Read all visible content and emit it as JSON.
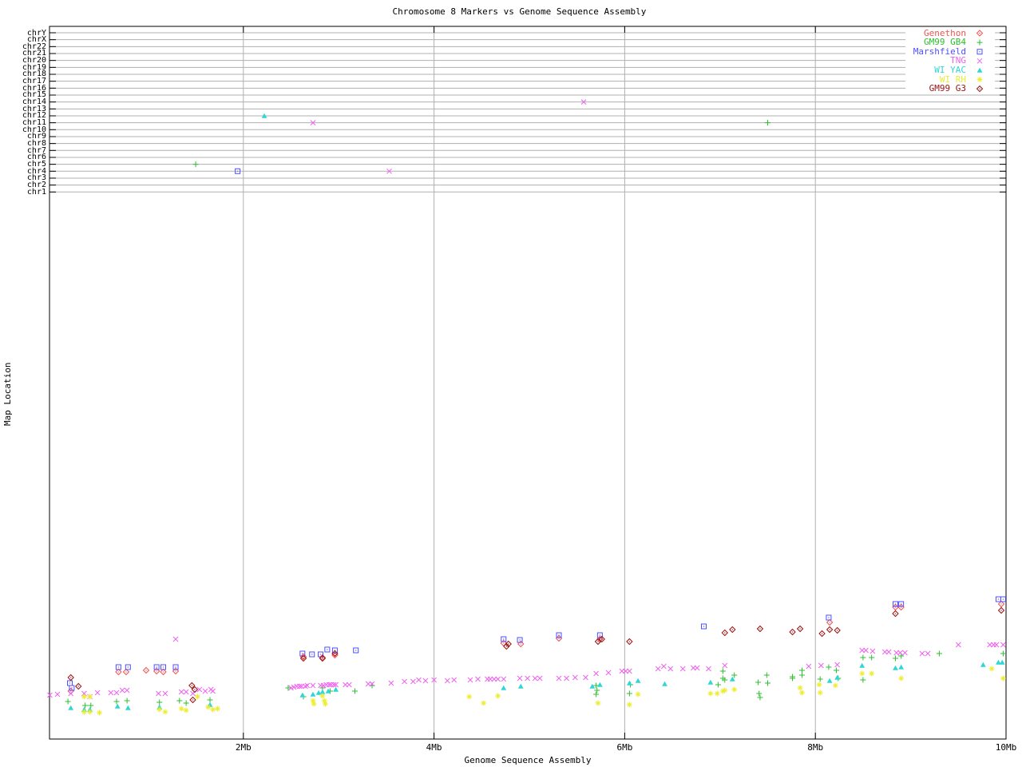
{
  "chart_data": {
    "type": "scatter",
    "title": "Chromosome 8 Markers vs Genome Sequence Assembly",
    "xlabel": "Genome Sequence Assembly",
    "ylabel": "Map Location",
    "x_ticks": [
      {
        "mb": 2,
        "label": "2Mb"
      },
      {
        "mb": 4,
        "label": "4Mb"
      },
      {
        "mb": 6,
        "label": "6Mb"
      },
      {
        "mb": 8,
        "label": "8Mb"
      },
      {
        "mb": 10,
        "label": "10Mb"
      }
    ],
    "x_axis_units": "Mb",
    "y_axis_note": "upper rows are per-chromosome gridlines; lower cloud is map location (axis unlabeled, stored as plot px from top)",
    "chromosome_rows_top_to_bottom": [
      "chrY",
      "chrX",
      "chr22",
      "chr21",
      "chr20",
      "chr19",
      "chr18",
      "chr17",
      "chr16",
      "chr15",
      "chr14",
      "chr13",
      "chr12",
      "chr11",
      "chr10",
      "chr9",
      "chr8",
      "chr7",
      "chr6",
      "chr5",
      "chr4",
      "chr3",
      "chr2",
      "chr1"
    ],
    "legend_position": "top-right-inside",
    "grid": true,
    "series": [
      {
        "name": "Genethon",
        "marker": "diamond-dot",
        "color": "#f25252",
        "points": [
          [
            0.19,
            865
          ],
          [
            0.69,
            841
          ],
          [
            0.77,
            841
          ],
          [
            0.98,
            839
          ],
          [
            1.09,
            840
          ],
          [
            1.16,
            841
          ],
          [
            1.29,
            840
          ],
          [
            2.63,
            822
          ],
          [
            2.83,
            823
          ],
          [
            2.96,
            820
          ],
          [
            4.73,
            805
          ],
          [
            4.91,
            806
          ],
          [
            5.31,
            799
          ],
          [
            5.74,
            800
          ],
          [
            8.15,
            779
          ],
          [
            8.84,
            760
          ],
          [
            8.9,
            760
          ],
          [
            9.95,
            756
          ]
        ],
        "chr_points": []
      },
      {
        "name": "GM99 GB4",
        "marker": "plus",
        "color": "#2fbf2f",
        "points": [
          [
            0.16,
            878
          ],
          [
            0.34,
            883
          ],
          [
            0.4,
            883
          ],
          [
            0.67,
            878
          ],
          [
            0.78,
            877
          ],
          [
            1.12,
            879
          ],
          [
            1.33,
            877
          ],
          [
            1.4,
            880
          ],
          [
            1.65,
            876
          ],
          [
            2.47,
            861
          ],
          [
            2.63,
            872
          ],
          [
            2.83,
            861
          ],
          [
            2.91,
            865
          ],
          [
            3.17,
            865
          ],
          [
            3.35,
            858
          ],
          [
            5.7,
            858
          ],
          [
            5.71,
            864
          ],
          [
            5.7,
            869
          ],
          [
            6.06,
            857
          ],
          [
            6.05,
            868
          ],
          [
            6.98,
            857
          ],
          [
            7.03,
            840
          ],
          [
            7.03,
            849
          ],
          [
            7.05,
            851
          ],
          [
            7.15,
            845
          ],
          [
            7.4,
            854
          ],
          [
            7.41,
            868
          ],
          [
            7.42,
            873
          ],
          [
            7.49,
            845
          ],
          [
            7.5,
            855
          ],
          [
            7.76,
            847
          ],
          [
            7.76,
            849
          ],
          [
            7.86,
            839
          ],
          [
            7.86,
            845
          ],
          [
            8.05,
            850
          ],
          [
            8.14,
            835
          ],
          [
            8.22,
            839
          ],
          [
            8.24,
            849
          ],
          [
            8.5,
            823
          ],
          [
            8.5,
            851
          ],
          [
            8.59,
            823
          ],
          [
            8.84,
            824
          ],
          [
            8.9,
            821
          ],
          [
            9.3,
            818
          ],
          [
            9.97,
            818
          ]
        ],
        "chr_points": [
          {
            "mb": 1.5,
            "chr": "chr5"
          },
          {
            "mb": 7.5,
            "chr": "chr11"
          }
        ]
      },
      {
        "name": "Marshfield",
        "marker": "square-dot",
        "color": "#4f4fff",
        "points": [
          [
            0.18,
            855
          ],
          [
            0.2,
            861
          ],
          [
            0.69,
            835
          ],
          [
            0.79,
            835
          ],
          [
            1.09,
            835
          ],
          [
            1.16,
            835
          ],
          [
            1.29,
            835
          ],
          [
            2.62,
            818
          ],
          [
            2.72,
            819
          ],
          [
            2.81,
            819
          ],
          [
            2.88,
            813
          ],
          [
            2.96,
            814
          ],
          [
            3.18,
            814
          ],
          [
            4.73,
            800
          ],
          [
            4.9,
            801
          ],
          [
            5.31,
            795
          ],
          [
            5.74,
            795
          ],
          [
            6.83,
            784
          ],
          [
            8.14,
            773
          ],
          [
            8.84,
            756
          ],
          [
            8.9,
            756
          ],
          [
            9.92,
            750
          ],
          [
            9.97,
            750
          ]
        ],
        "chr_points": [
          {
            "mb": 1.94,
            "chr": "chr4"
          }
        ]
      },
      {
        "name": "TNG",
        "marker": "cross",
        "color": "#f060f0",
        "points": [
          [
            -0.03,
            870
          ],
          [
            0.05,
            869
          ],
          [
            0.19,
            868
          ],
          [
            0.33,
            868
          ],
          [
            0.39,
            872
          ],
          [
            0.47,
            867
          ],
          [
            0.61,
            867
          ],
          [
            0.67,
            867
          ],
          [
            0.73,
            864
          ],
          [
            0.78,
            864
          ],
          [
            1.11,
            868
          ],
          [
            1.18,
            868
          ],
          [
            1.29,
            800
          ],
          [
            1.35,
            866
          ],
          [
            1.4,
            866
          ],
          [
            1.47,
            868
          ],
          [
            1.54,
            863
          ],
          [
            1.6,
            865
          ],
          [
            1.66,
            863
          ],
          [
            1.68,
            865
          ],
          [
            2.5,
            861
          ],
          [
            2.53,
            860
          ],
          [
            2.56,
            859
          ],
          [
            2.59,
            859
          ],
          [
            2.61,
            859
          ],
          [
            2.65,
            859
          ],
          [
            2.67,
            858
          ],
          [
            2.73,
            858
          ],
          [
            2.81,
            858
          ],
          [
            2.84,
            858
          ],
          [
            2.87,
            857
          ],
          [
            2.9,
            857
          ],
          [
            2.92,
            857
          ],
          [
            2.95,
            857
          ],
          [
            2.97,
            857
          ],
          [
            3.07,
            857
          ],
          [
            3.11,
            857
          ],
          [
            3.31,
            856
          ],
          [
            3.35,
            856
          ],
          [
            3.55,
            855
          ],
          [
            3.69,
            853
          ],
          [
            3.78,
            853
          ],
          [
            3.84,
            851
          ],
          [
            3.91,
            852
          ],
          [
            4.0,
            851
          ],
          [
            4.14,
            852
          ],
          [
            4.21,
            851
          ],
          [
            4.38,
            851
          ],
          [
            4.46,
            850
          ],
          [
            4.56,
            850
          ],
          [
            4.59,
            850
          ],
          [
            4.63,
            850
          ],
          [
            4.67,
            850
          ],
          [
            4.73,
            850
          ],
          [
            4.9,
            849
          ],
          [
            4.98,
            849
          ],
          [
            5.06,
            849
          ],
          [
            5.11,
            849
          ],
          [
            5.31,
            849
          ],
          [
            5.39,
            849
          ],
          [
            5.48,
            848
          ],
          [
            5.59,
            848
          ],
          [
            5.7,
            843
          ],
          [
            5.83,
            842
          ],
          [
            5.97,
            840
          ],
          [
            6.01,
            840
          ],
          [
            6.05,
            840
          ],
          [
            6.35,
            837
          ],
          [
            6.41,
            834
          ],
          [
            6.48,
            837
          ],
          [
            6.61,
            837
          ],
          [
            6.72,
            836
          ],
          [
            6.76,
            836
          ],
          [
            6.88,
            837
          ],
          [
            7.05,
            833
          ],
          [
            7.93,
            834
          ],
          [
            8.06,
            833
          ],
          [
            8.23,
            832
          ],
          [
            8.49,
            814
          ],
          [
            8.53,
            814
          ],
          [
            8.6,
            815
          ],
          [
            8.73,
            816
          ],
          [
            8.77,
            816
          ],
          [
            8.85,
            817
          ],
          [
            8.89,
            817
          ],
          [
            8.94,
            817
          ],
          [
            9.12,
            818
          ],
          [
            9.18,
            818
          ],
          [
            9.5,
            807
          ],
          [
            9.83,
            807
          ],
          [
            9.87,
            807
          ],
          [
            9.9,
            807
          ],
          [
            9.97,
            807
          ]
        ],
        "chr_points": [
          {
            "mb": 2.73,
            "chr": "chr11"
          },
          {
            "mb": 3.53,
            "chr": "chr4"
          },
          {
            "mb": 5.57,
            "chr": "chr14"
          }
        ]
      },
      {
        "name": "WI YAC",
        "marker": "triangle",
        "color": "#2fd6d6",
        "points": [
          [
            0.19,
            886
          ],
          [
            0.33,
            888
          ],
          [
            0.39,
            888
          ],
          [
            0.68,
            884
          ],
          [
            0.79,
            886
          ],
          [
            1.12,
            885
          ],
          [
            1.65,
            882
          ],
          [
            2.62,
            870
          ],
          [
            2.73,
            869
          ],
          [
            2.79,
            867
          ],
          [
            2.83,
            866
          ],
          [
            2.89,
            865
          ],
          [
            2.97,
            863
          ],
          [
            4.73,
            861
          ],
          [
            4.91,
            859
          ],
          [
            5.66,
            859
          ],
          [
            5.74,
            857
          ],
          [
            6.05,
            855
          ],
          [
            6.14,
            852
          ],
          [
            6.42,
            856
          ],
          [
            6.9,
            854
          ],
          [
            7.13,
            850
          ],
          [
            8.15,
            852
          ],
          [
            8.23,
            848
          ],
          [
            8.49,
            833
          ],
          [
            8.84,
            836
          ],
          [
            8.9,
            835
          ],
          [
            9.76,
            832
          ],
          [
            9.92,
            829
          ],
          [
            9.96,
            829
          ]
        ],
        "chr_points": [
          {
            "mb": 2.22,
            "chr": "chr12"
          }
        ]
      },
      {
        "name": "WI RH",
        "marker": "asterisk",
        "color": "#ecec30",
        "points": [
          [
            0.33,
            872
          ],
          [
            0.39,
            872
          ],
          [
            0.33,
            891
          ],
          [
            0.39,
            891
          ],
          [
            0.49,
            892
          ],
          [
            1.12,
            888
          ],
          [
            1.18,
            891
          ],
          [
            1.35,
            887
          ],
          [
            1.4,
            889
          ],
          [
            1.52,
            872
          ],
          [
            1.63,
            885
          ],
          [
            1.68,
            888
          ],
          [
            1.73,
            887
          ],
          [
            2.73,
            877
          ],
          [
            2.74,
            881
          ],
          [
            2.83,
            871
          ],
          [
            2.85,
            877
          ],
          [
            2.86,
            881
          ],
          [
            4.37,
            872
          ],
          [
            4.52,
            880
          ],
          [
            4.67,
            871
          ],
          [
            5.72,
            880
          ],
          [
            6.05,
            882
          ],
          [
            6.14,
            869
          ],
          [
            6.9,
            868
          ],
          [
            6.97,
            868
          ],
          [
            7.03,
            865
          ],
          [
            7.05,
            864
          ],
          [
            7.15,
            863
          ],
          [
            7.84,
            861
          ],
          [
            7.86,
            867
          ],
          [
            8.04,
            857
          ],
          [
            8.05,
            867
          ],
          [
            8.21,
            858
          ],
          [
            8.49,
            843
          ],
          [
            8.59,
            843
          ],
          [
            8.9,
            849
          ],
          [
            9.85,
            837
          ],
          [
            9.97,
            849
          ]
        ],
        "chr_points": []
      },
      {
        "name": "GM99 G3",
        "marker": "diamond-dot",
        "color": "#991111",
        "points": [
          [
            0.19,
            848
          ],
          [
            0.27,
            859
          ],
          [
            1.46,
            858
          ],
          [
            1.49,
            863
          ],
          [
            1.47,
            876
          ],
          [
            2.63,
            824
          ],
          [
            2.83,
            824
          ],
          [
            2.96,
            818
          ],
          [
            4.76,
            809
          ],
          [
            4.78,
            806
          ],
          [
            5.72,
            803
          ],
          [
            5.76,
            800
          ],
          [
            6.05,
            803
          ],
          [
            7.05,
            792
          ],
          [
            7.13,
            788
          ],
          [
            7.42,
            787
          ],
          [
            7.76,
            791
          ],
          [
            7.84,
            787
          ],
          [
            8.07,
            793
          ],
          [
            8.15,
            788
          ],
          [
            8.23,
            789
          ],
          [
            8.84,
            768
          ],
          [
            9.95,
            764
          ]
        ],
        "chr_points": []
      }
    ]
  }
}
